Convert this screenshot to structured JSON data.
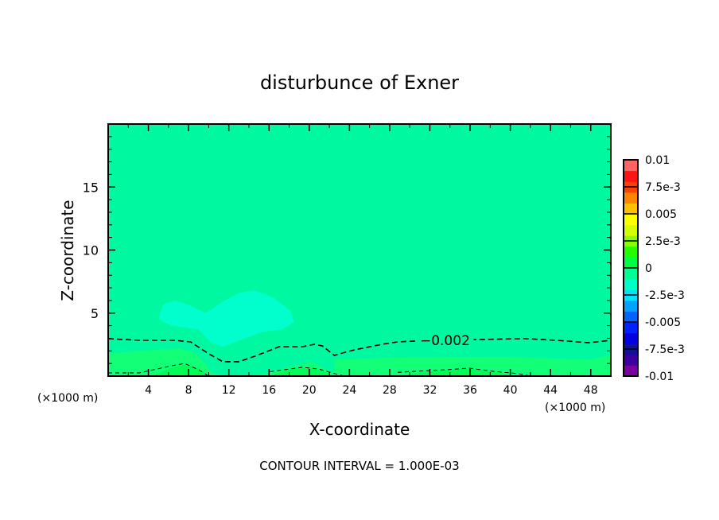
{
  "chart_data": {
    "type": "heatmap",
    "subtype": "filled-contour",
    "title": "disturbunce of Exner",
    "xlabel": "X-coordinate",
    "ylabel": "Z-coordinate",
    "x_unit_left": "(×1000 m)",
    "x_unit_right": "(×1000 m)",
    "xlim": [
      0,
      50
    ],
    "ylim": [
      0,
      20
    ],
    "xticks": [
      4,
      8,
      12,
      16,
      20,
      24,
      28,
      32,
      36,
      40,
      44,
      48
    ],
    "yticks": [
      5,
      10,
      15
    ],
    "footer": "CONTOUR INTERVAL = 1.000E-03",
    "background_level_color": "#00f8a0",
    "filled_regions": [
      {
        "name": "cyan-blob",
        "level": -0.003,
        "color": "#00ffcc",
        "points": [
          [
            5.1,
            4.9
          ],
          [
            5.5,
            5.7
          ],
          [
            6.6,
            6.0
          ],
          [
            8.2,
            5.6
          ],
          [
            9.7,
            5.0
          ],
          [
            11.4,
            5.9
          ],
          [
            13.0,
            6.6
          ],
          [
            14.6,
            6.8
          ],
          [
            16.5,
            6.2
          ],
          [
            18.1,
            5.2
          ],
          [
            18.5,
            4.3
          ],
          [
            17.3,
            3.7
          ],
          [
            15.3,
            3.5
          ],
          [
            13.0,
            2.8
          ],
          [
            11.4,
            2.3
          ],
          [
            10.2,
            2.7
          ],
          [
            9.0,
            3.7
          ],
          [
            6.3,
            4.0
          ],
          [
            5.1,
            4.5
          ]
        ]
      },
      {
        "name": "green-band-left",
        "level": -0.0015,
        "color": "#14ff78",
        "points": [
          [
            0,
            0
          ],
          [
            0,
            1.8
          ],
          [
            5,
            2.1
          ],
          [
            7,
            2.2
          ],
          [
            8.7,
            1.8
          ],
          [
            9.5,
            1.1
          ],
          [
            10.3,
            0.3
          ],
          [
            11.4,
            0
          ],
          [
            14.6,
            0
          ],
          [
            15.5,
            0.2
          ],
          [
            18.5,
            0.8
          ],
          [
            20.3,
            1.1
          ],
          [
            21.5,
            0.6
          ],
          [
            22.4,
            0.2
          ],
          [
            23.5,
            0
          ]
        ]
      },
      {
        "name": "green-band-right",
        "level": -0.0015,
        "color": "#14ff78",
        "points": [
          [
            22.5,
            0
          ],
          [
            22.5,
            1.3
          ],
          [
            24,
            1.35
          ],
          [
            28,
            1.45
          ],
          [
            34,
            1.5
          ],
          [
            40,
            1.5
          ],
          [
            44,
            1.4
          ],
          [
            48,
            1.3
          ],
          [
            50,
            1.7
          ],
          [
            50,
            0
          ]
        ]
      },
      {
        "name": "green-core",
        "level": -0.0005,
        "color": "#00ff55",
        "points": [
          [
            4.5,
            0
          ],
          [
            6,
            0.6
          ],
          [
            7.5,
            0.9
          ],
          [
            9,
            0.6
          ],
          [
            10,
            0
          ]
        ]
      },
      {
        "name": "green-core-2",
        "level": -0.0005,
        "color": "#00ff55",
        "points": [
          [
            16,
            0
          ],
          [
            18,
            0.5
          ],
          [
            20,
            0.7
          ],
          [
            22,
            0.2
          ],
          [
            22.5,
            0
          ]
        ]
      },
      {
        "name": "green-core-3",
        "level": -0.0005,
        "color": "#00ff55",
        "points": [
          [
            29,
            0
          ],
          [
            32,
            0.4
          ],
          [
            36,
            0.6
          ],
          [
            39,
            0.3
          ],
          [
            40.5,
            0
          ]
        ]
      }
    ],
    "contours": [
      {
        "level": -0.002,
        "label": "-0.002",
        "label_at": [
          33.5,
          2.7
        ],
        "style": "dashed-bold",
        "points": [
          [
            0,
            2.97
          ],
          [
            3.1,
            2.84
          ],
          [
            6.6,
            2.84
          ],
          [
            8.2,
            2.71
          ],
          [
            10.0,
            1.77
          ],
          [
            11.4,
            1.14
          ],
          [
            13.0,
            1.14
          ],
          [
            14.6,
            1.58
          ],
          [
            17.0,
            2.33
          ],
          [
            19.3,
            2.33
          ],
          [
            20.5,
            2.52
          ],
          [
            21.3,
            2.4
          ],
          [
            22.5,
            1.64
          ],
          [
            23.3,
            1.83
          ],
          [
            24.5,
            2.08
          ],
          [
            27.2,
            2.52
          ],
          [
            28.8,
            2.71
          ],
          [
            32.0,
            2.84
          ],
          [
            36.7,
            2.9
          ],
          [
            41.5,
            2.97
          ],
          [
            44.6,
            2.84
          ],
          [
            47.8,
            2.65
          ],
          [
            50,
            2.84
          ]
        ]
      },
      {
        "level": -0.001,
        "style": "dashed-thin",
        "points": [
          [
            0,
            0.25
          ],
          [
            3.1,
            0.25
          ],
          [
            6.2,
            0.8
          ],
          [
            7.6,
            1.0
          ],
          [
            9.0,
            0.5
          ],
          [
            10.0,
            0
          ]
        ]
      },
      {
        "level": -0.001,
        "style": "dashed-thin",
        "points": [
          [
            16.1,
            0.35
          ],
          [
            19.3,
            0.7
          ],
          [
            20.9,
            0.57
          ],
          [
            22.5,
            0.2
          ],
          [
            23.5,
            0
          ]
        ]
      },
      {
        "level": -0.001,
        "style": "dashed-thin",
        "points": [
          [
            28.8,
            0.3
          ],
          [
            33.5,
            0.5
          ],
          [
            35.9,
            0.63
          ],
          [
            38.3,
            0.38
          ],
          [
            40.7,
            0.2
          ],
          [
            42,
            0
          ]
        ]
      }
    ],
    "colorbar": {
      "min": -0.01,
      "max": 0.01,
      "labels": [
        {
          "value": 0.01,
          "text": "0.01"
        },
        {
          "value": 0.0075,
          "text": "7.5e-3"
        },
        {
          "value": 0.005,
          "text": "0.005"
        },
        {
          "value": 0.0025,
          "text": "2.5e-3"
        },
        {
          "value": 0,
          "text": "0"
        },
        {
          "value": -0.0025,
          "text": "-2.5e-3"
        },
        {
          "value": -0.005,
          "text": "-0.005"
        },
        {
          "value": -0.0075,
          "text": "-7.5e-3"
        },
        {
          "value": -0.01,
          "text": "-0.01"
        }
      ],
      "colors_low_to_high": [
        "#7a00a0",
        "#3c00a0",
        "#10109c",
        "#0000e0",
        "#0022ff",
        "#0064ff",
        "#00a4ff",
        "#00e4ff",
        "#00ffc8",
        "#00ff94",
        "#00ff44",
        "#22ff00",
        "#88ff00",
        "#d4ff00",
        "#ffff00",
        "#ffc000",
        "#ff8400",
        "#ff4000",
        "#ff1414",
        "#ff6464"
      ]
    }
  }
}
